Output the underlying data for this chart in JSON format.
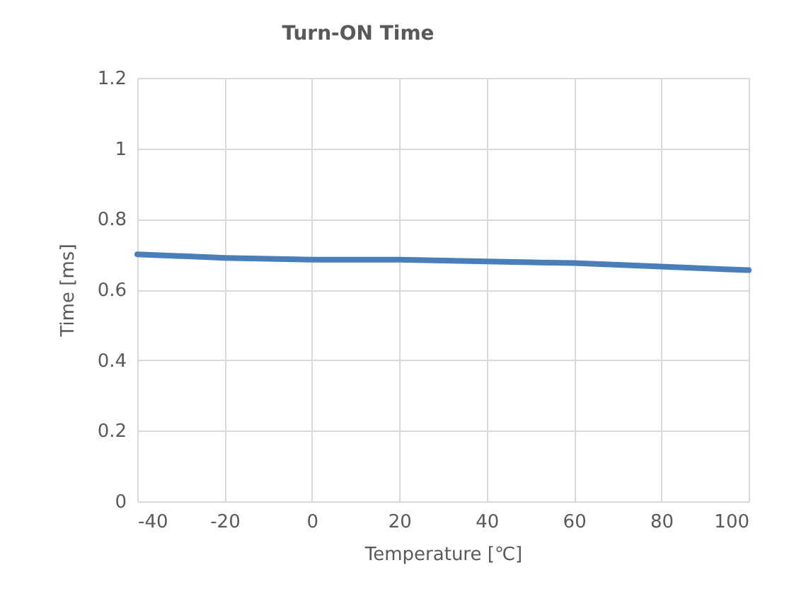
{
  "chart_data": {
    "type": "line",
    "title": "Turn-ON Time",
    "xlabel": "Temperature [℃]",
    "ylabel": "Time [ms]",
    "x": [
      -40,
      -20,
      0,
      20,
      40,
      60,
      80,
      100
    ],
    "series": [
      {
        "color": "#4a7ebb",
        "values": [
          0.7,
          0.69,
          0.685,
          0.685,
          0.68,
          0.675,
          0.665,
          0.655
        ]
      }
    ],
    "xlim": [
      -40,
      100
    ],
    "xticks": [
      -40,
      -20,
      0,
      20,
      40,
      60,
      80,
      100
    ],
    "ylim": [
      0,
      1.2
    ],
    "yticks": [
      0,
      0.2,
      0.4,
      0.6,
      0.8,
      1,
      1.2
    ],
    "grid": true,
    "marker": "none",
    "line_style": "solid"
  }
}
